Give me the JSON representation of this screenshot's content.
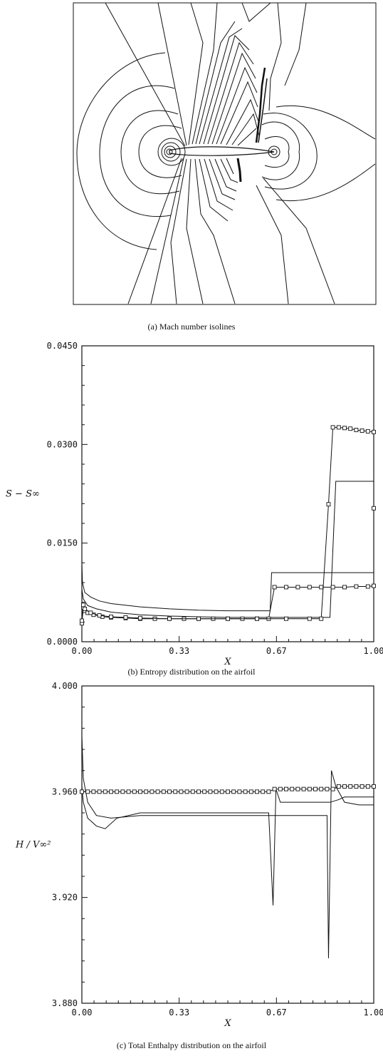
{
  "figure_a": {
    "caption": "(a) Mach number isolines"
  },
  "figure_b": {
    "caption": "(b) Entropy distribution on the airfoil"
  },
  "figure_c": {
    "caption": "(c) Total Enthalpy distribution on the airfoil"
  },
  "chart_data": [
    {
      "type": "line",
      "xlabel": "X",
      "ylabel": "S − S∞",
      "xlim": [
        0.0,
        1.0
      ],
      "ylim": [
        0.0,
        0.045
      ],
      "x_ticks": [
        "0.00",
        "0.33",
        "0.67",
        "1.00"
      ],
      "y_ticks": [
        "0.0000",
        "0.0150",
        "0.0300",
        "0.0450"
      ],
      "series": [
        {
          "style": "solid",
          "x": [
            0.0,
            0.002,
            0.01,
            0.03,
            0.06,
            0.1,
            0.2,
            0.3,
            0.4,
            0.5,
            0.6,
            0.645,
            0.65,
            0.8,
            0.9,
            1.0
          ],
          "y": [
            0.012,
            0.009,
            0.0075,
            0.0068,
            0.0062,
            0.0058,
            0.0053,
            0.005,
            0.0048,
            0.0047,
            0.0047,
            0.0047,
            0.0105,
            0.0105,
            0.0105,
            0.0105
          ]
        },
        {
          "style": "solid",
          "x": [
            0.0,
            0.005,
            0.02,
            0.05,
            0.1,
            0.2,
            0.3,
            0.4,
            0.5,
            0.6,
            0.7,
            0.8,
            0.85,
            0.87,
            0.9,
            1.0
          ],
          "y": [
            0.008,
            0.0065,
            0.0055,
            0.005,
            0.0045,
            0.0041,
            0.0039,
            0.0038,
            0.0037,
            0.0037,
            0.0037,
            0.0037,
            0.0037,
            0.0244,
            0.0244,
            0.0244
          ]
        },
        {
          "style": "squares",
          "x": [
            0.0,
            0.005,
            0.01,
            0.02,
            0.04,
            0.07,
            0.1,
            0.15,
            0.2,
            0.25,
            0.3,
            0.35,
            0.4,
            0.45,
            0.5,
            0.55,
            0.6,
            0.64,
            0.66,
            0.7,
            0.74,
            0.78,
            0.82,
            0.86,
            0.9,
            0.94,
            0.98,
            1.0
          ],
          "y": [
            0.0028,
            0.0052,
            0.0047,
            0.0044,
            0.0041,
            0.0038,
            0.0037,
            0.0036,
            0.0035,
            0.0035,
            0.0035,
            0.0035,
            0.0035,
            0.0035,
            0.0035,
            0.0035,
            0.0035,
            0.0035,
            0.0083,
            0.0083,
            0.0083,
            0.0083,
            0.0083,
            0.0083,
            0.0083,
            0.0084,
            0.0084,
            0.0085
          ]
        },
        {
          "style": "squares",
          "x": [
            0.0,
            0.005,
            0.01,
            0.03,
            0.06,
            0.1,
            0.15,
            0.2,
            0.3,
            0.4,
            0.5,
            0.6,
            0.7,
            0.78,
            0.82,
            0.845,
            0.86,
            0.88,
            0.9,
            0.92,
            0.94,
            0.96,
            0.98,
            1.0,
            1.0
          ],
          "y": [
            0.0032,
            0.0056,
            0.005,
            0.0044,
            0.004,
            0.0038,
            0.0037,
            0.0036,
            0.0035,
            0.0035,
            0.0035,
            0.0035,
            0.0035,
            0.0035,
            0.0035,
            0.0209,
            0.0326,
            0.0326,
            0.0325,
            0.0324,
            0.0322,
            0.0321,
            0.032,
            0.0319,
            0.0203
          ]
        }
      ]
    },
    {
      "type": "line",
      "xlabel": "X",
      "ylabel": "H / V∞²",
      "xlim": [
        0.0,
        1.0
      ],
      "ylim": [
        3.88,
        4.0
      ],
      "x_ticks": [
        "0.00",
        "0.33",
        "0.67",
        "1.00"
      ],
      "y_ticks": [
        "3.880",
        "3.920",
        "3.960",
        "4.000"
      ],
      "series": [
        {
          "style": "solid",
          "x": [
            0.0,
            0.005,
            0.02,
            0.05,
            0.08,
            0.12,
            0.2,
            0.3,
            0.4,
            0.5,
            0.6,
            0.64,
            0.655,
            0.665,
            0.68,
            0.75,
            0.8,
            0.85,
            0.88,
            0.9,
            0.95,
            1.0
          ],
          "y": [
            3.962,
            3.956,
            3.95,
            3.947,
            3.946,
            3.95,
            3.952,
            3.952,
            3.952,
            3.952,
            3.952,
            3.952,
            3.917,
            3.961,
            3.956,
            3.956,
            3.956,
            3.956,
            3.957,
            3.958,
            3.958,
            3.958
          ]
        },
        {
          "style": "solid",
          "x": [
            0.0,
            0.005,
            0.02,
            0.05,
            0.1,
            0.2,
            0.3,
            0.4,
            0.5,
            0.6,
            0.7,
            0.8,
            0.84,
            0.845,
            0.855,
            0.87,
            0.9,
            0.95,
            1.0
          ],
          "y": [
            3.981,
            3.965,
            3.956,
            3.951,
            3.95,
            3.951,
            3.951,
            3.951,
            3.951,
            3.951,
            3.951,
            3.951,
            3.951,
            3.897,
            3.968,
            3.962,
            3.956,
            3.955,
            3.955
          ]
        },
        {
          "style": "squares",
          "x": [
            0.0,
            0.02,
            0.04,
            0.06,
            0.08,
            0.1,
            0.12,
            0.14,
            0.16,
            0.18,
            0.2,
            0.22,
            0.24,
            0.26,
            0.28,
            0.3,
            0.32,
            0.34,
            0.36,
            0.38,
            0.4,
            0.42,
            0.44,
            0.46,
            0.48,
            0.5,
            0.52,
            0.54,
            0.56,
            0.58,
            0.6,
            0.62,
            0.64,
            0.66,
            0.68,
            0.7,
            0.72,
            0.74,
            0.76,
            0.78,
            0.8,
            0.82,
            0.84,
            0.86,
            0.88,
            0.9,
            0.92,
            0.94,
            0.96,
            0.98,
            1.0
          ],
          "y": [
            3.96,
            3.96,
            3.96,
            3.96,
            3.96,
            3.96,
            3.96,
            3.96,
            3.96,
            3.96,
            3.96,
            3.96,
            3.96,
            3.96,
            3.96,
            3.96,
            3.96,
            3.96,
            3.96,
            3.96,
            3.96,
            3.96,
            3.96,
            3.96,
            3.96,
            3.96,
            3.96,
            3.96,
            3.96,
            3.96,
            3.96,
            3.96,
            3.96,
            3.961,
            3.961,
            3.961,
            3.961,
            3.961,
            3.961,
            3.961,
            3.961,
            3.961,
            3.961,
            3.961,
            3.962,
            3.962,
            3.962,
            3.962,
            3.962,
            3.962,
            3.962
          ]
        }
      ]
    }
  ]
}
